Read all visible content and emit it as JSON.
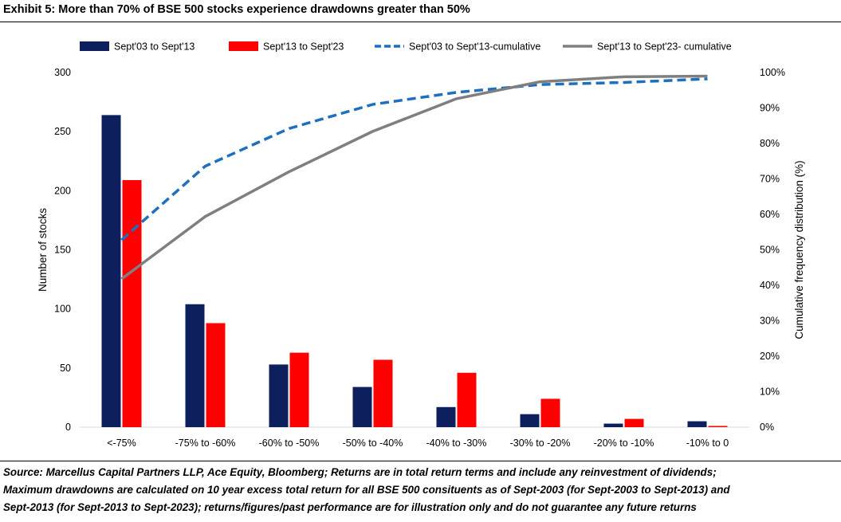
{
  "title": "Exhibit 5: More than 70% of BSE 500 stocks experience drawdowns greater than 50%",
  "footnote": [
    "Source: Marcellus Capital Partners LLP, Ace Equity, Bloomberg; Returns are in total return terms and include any reinvestment of dividends;",
    "Maximum drawdowns are calculated on 10 year excess total return for all BSE 500 consituents as of Sept-2003 (for Sept-2003 to Sept-2013) and",
    "Sept-2013 (for Sept-2013 to Sept-2023); returns/figures/past performance are for illustration only and do not guarantee any future returns"
  ],
  "chart_data": {
    "type": "bar",
    "categories": [
      "<-75%",
      "-75% to -60%",
      "-60% to -50%",
      "-50% to -40%",
      "-40% to -30%",
      "-30% to -20%",
      "-20% to -10%",
      "-10% to 0"
    ],
    "ylabel": "Number of stocks",
    "y2label": "Cumulative frequency distribution (%)",
    "ylim": [
      0,
      300
    ],
    "yticks": [
      "0",
      "50",
      "100",
      "150",
      "200",
      "250",
      "300"
    ],
    "y2lim": [
      0,
      100
    ],
    "y2ticks": [
      "0%",
      "10%",
      "20%",
      "30%",
      "40%",
      "50%",
      "60%",
      "70%",
      "80%",
      "90%",
      "100%"
    ],
    "grid": false,
    "legend_position": "top",
    "series": [
      {
        "name": "Sept'03 to Sept'13",
        "kind": "bar",
        "axis": "left",
        "color": "#0d1f5c",
        "values": [
          264,
          104,
          53,
          34,
          17,
          11,
          3,
          5
        ]
      },
      {
        "name": "Sept'13 to Sept'23",
        "kind": "bar",
        "axis": "left",
        "color": "#ff0000",
        "values": [
          209,
          88,
          63,
          57,
          46,
          24,
          7,
          1
        ]
      },
      {
        "name": "Sept'03 to Sept'13-cumulative",
        "kind": "line",
        "style": "dashed",
        "axis": "right",
        "color": "#1f6fbf",
        "values": [
          52.8,
          73.6,
          84.2,
          91.0,
          94.4,
          96.6,
          97.2,
          98.2
        ]
      },
      {
        "name": "Sept'13 to Sept'23- cumulative",
        "kind": "line",
        "style": "solid",
        "axis": "right",
        "color": "#7f7f7f",
        "values": [
          41.8,
          59.4,
          72.0,
          83.4,
          92.6,
          97.4,
          98.8,
          99.0
        ]
      }
    ]
  }
}
